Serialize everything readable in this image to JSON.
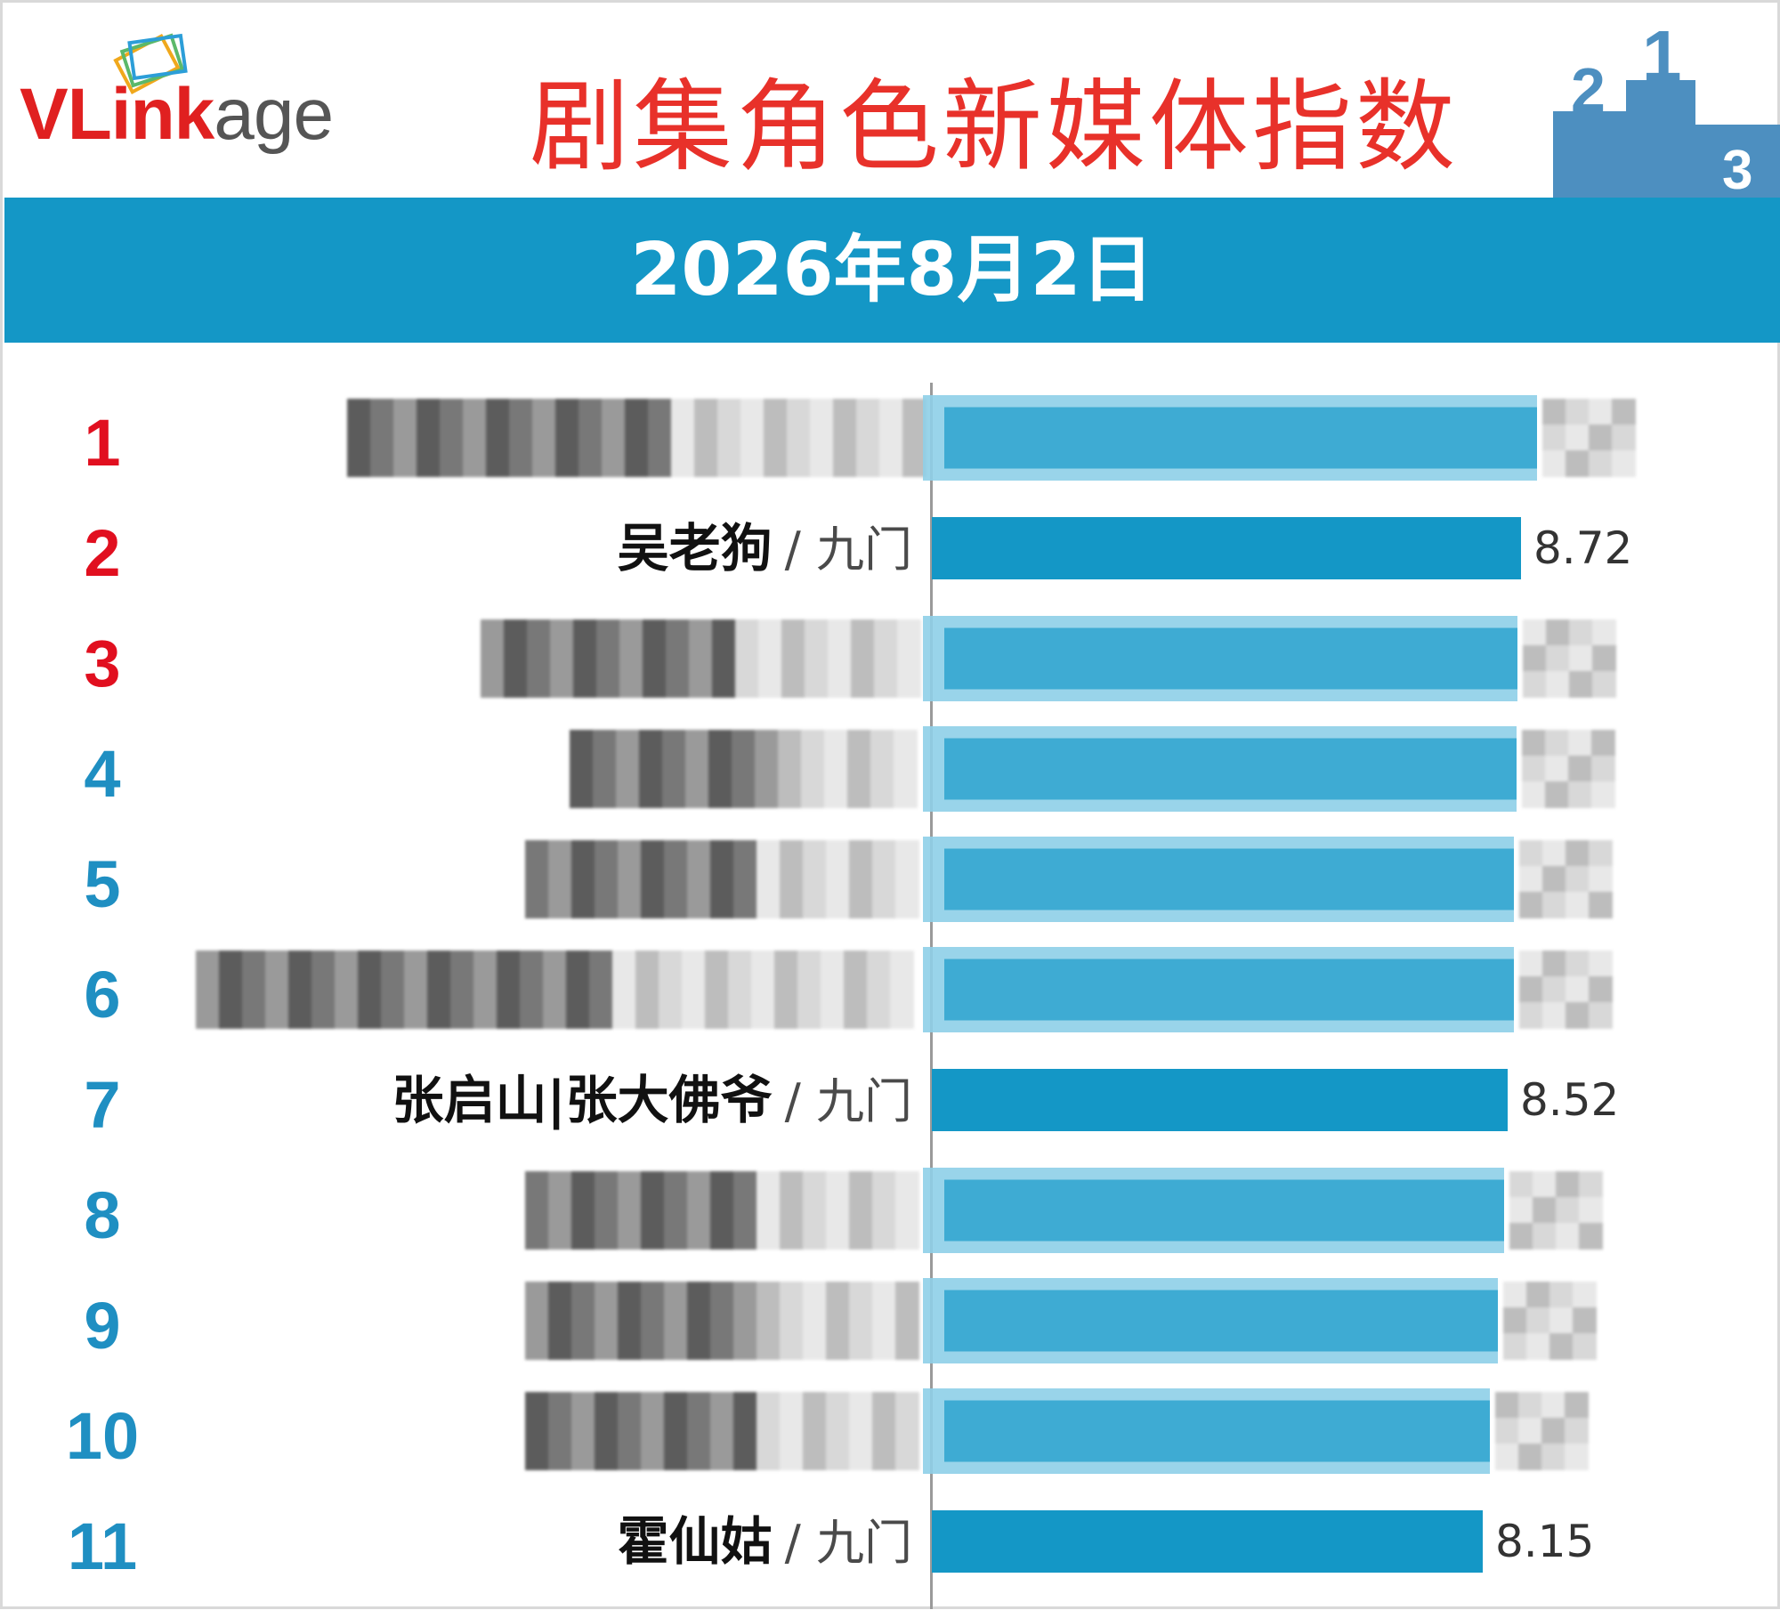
{
  "header": {
    "logo": {
      "brand_red": "VLink",
      "brand_grey": "age"
    },
    "title": "剧集角色新媒体指数",
    "date": "2026年8月2日"
  },
  "colors": {
    "title": "#e8312a",
    "rank_top3": "#e10f1f",
    "rank_other": "#1f8fc2",
    "bar": "#1497c6",
    "band": "#1497c6"
  },
  "icons": [
    "logo-cards-icon",
    "podium-icon"
  ],
  "chart_data": {
    "type": "bar",
    "orientation": "horizontal",
    "title": "剧集角色新媒体指数",
    "subtitle": "2026年8月2日",
    "xlim": [
      0,
      10.5
    ],
    "rows": [
      {
        "rank": "1",
        "character": "",
        "show": "",
        "value": 8.96,
        "redacted": true
      },
      {
        "rank": "2",
        "character": "吴老狗",
        "show": "九门",
        "value": 8.72,
        "value_label": "8.72",
        "redacted": false
      },
      {
        "rank": "3",
        "character": "",
        "show": "",
        "value": 8.66,
        "redacted": true
      },
      {
        "rank": "4",
        "character": "",
        "show": "",
        "value": 8.65,
        "redacted": true
      },
      {
        "rank": "5",
        "character": "",
        "show": "",
        "value": 8.62,
        "redacted": true
      },
      {
        "rank": "6",
        "character": "",
        "show": "",
        "value": 8.62,
        "redacted": true
      },
      {
        "rank": "7",
        "character": "张启山|张大佛爷",
        "show": "九门",
        "value": 8.52,
        "value_label": "8.52",
        "redacted": false
      },
      {
        "rank": "8",
        "character": "",
        "show": "",
        "value": 8.47,
        "redacted": true
      },
      {
        "rank": "9",
        "character": "",
        "show": "",
        "value": 8.37,
        "redacted": true
      },
      {
        "rank": "10",
        "character": "",
        "show": "",
        "value": 8.26,
        "redacted": true
      },
      {
        "rank": "11",
        "character": "霍仙姑",
        "show": "九门",
        "value": 8.15,
        "value_label": "8.15",
        "redacted": false
      }
    ]
  }
}
